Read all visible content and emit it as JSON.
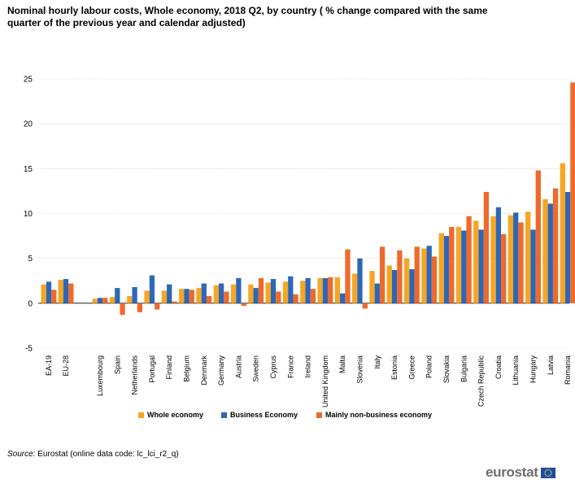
{
  "chart_data": {
    "type": "bar",
    "title": "Nominal hourly labour costs, Whole economy, 2018 Q2, by country ( % change compared with the same quarter of the previous year and calendar adjusted)",
    "xlabel": "",
    "ylabel": "",
    "ylim": [
      -5,
      25
    ],
    "yticks": [
      -5,
      0,
      5,
      10,
      15,
      20,
      25
    ],
    "grid": true,
    "legend_position": "bottom",
    "categories": [
      "EA-19",
      "EU-28",
      "Luxembourg",
      "Spain",
      "Netherlands",
      "Portugal",
      "Finland",
      "Belgium",
      "Denmark",
      "Germany",
      "Austria",
      "Sweden",
      "Cyprus",
      "France",
      "Ireland",
      "United Kingdom",
      "Malta",
      "Slovenia",
      "Italy",
      "Estonia",
      "Greece",
      "Poland",
      "Slovakia",
      "Bulgaria",
      "Czech Republic",
      "Croatia",
      "Lithuania",
      "Hungary",
      "Latvia",
      "Romania"
    ],
    "series": [
      {
        "name": "Whole economy",
        "color": "#f5a623",
        "values": [
          2.1,
          2.6,
          0.5,
          0.7,
          0.8,
          1.4,
          1.4,
          1.6,
          1.7,
          2.0,
          2.1,
          2.1,
          2.3,
          2.4,
          2.5,
          2.8,
          2.9,
          3.3,
          3.6,
          4.2,
          5.0,
          6.1,
          7.8,
          8.5,
          9.2,
          9.7,
          9.8,
          10.2,
          11.6,
          15.6
        ]
      },
      {
        "name": "Business Economy",
        "color": "#2e67b8",
        "values": [
          2.4,
          2.7,
          0.6,
          1.7,
          1.8,
          3.1,
          2.1,
          1.6,
          2.2,
          2.2,
          2.8,
          1.7,
          2.7,
          3.0,
          2.8,
          2.8,
          1.1,
          5.0,
          2.2,
          3.7,
          3.8,
          6.4,
          7.5,
          8.1,
          8.2,
          10.7,
          10.1,
          8.2,
          11.1,
          12.4
        ]
      },
      {
        "name": "Mainly non-business economy",
        "color": "#ee6a2c",
        "values": [
          1.5,
          2.2,
          0.6,
          -1.3,
          -1.0,
          -0.7,
          0.2,
          1.5,
          0.8,
          1.3,
          -0.3,
          2.8,
          1.3,
          1.0,
          1.6,
          2.9,
          6.0,
          -0.6,
          6.3,
          5.9,
          6.3,
          5.2,
          8.5,
          9.7,
          12.4,
          7.7,
          9.0,
          14.8,
          12.8,
          24.6
        ]
      }
    ]
  },
  "source": {
    "label": "Source:",
    "text": " Eurostat (online data code: lc_lci_r2_q)"
  },
  "logo": {
    "text": "eurostat"
  }
}
